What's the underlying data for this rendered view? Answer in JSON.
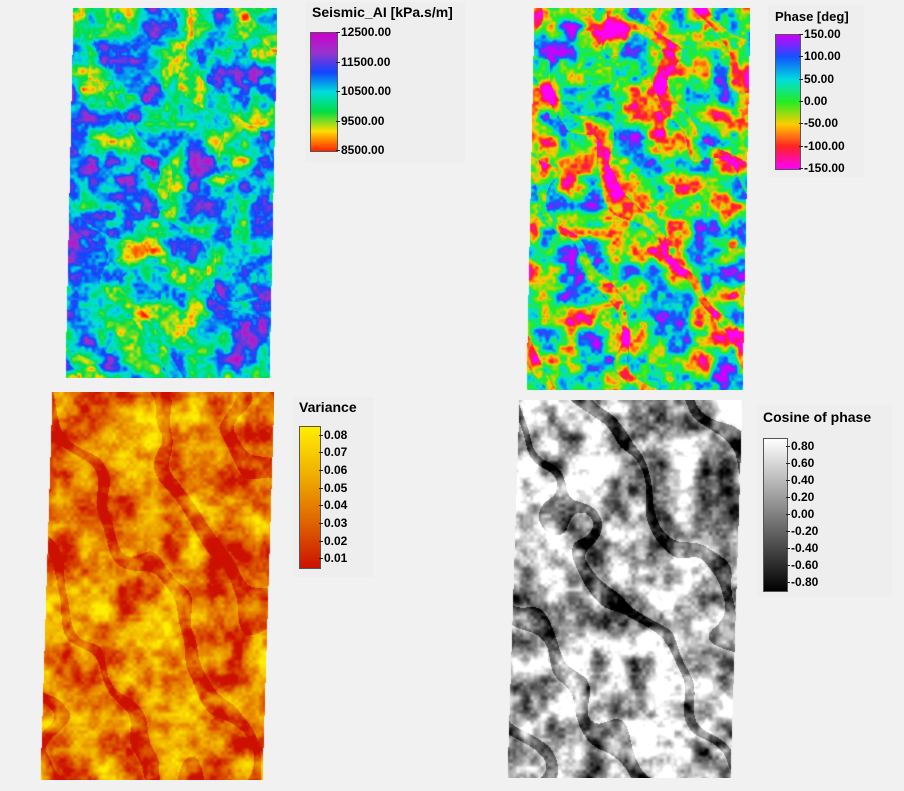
{
  "panels": [
    {
      "id": "seismic-ai",
      "legend_title": "Seismic_AI [kPa.s/m]",
      "colorscale": [
        "#ff2200",
        "#ffdd00",
        "#00dd44",
        "#00dddd",
        "#1144ff",
        "#9933cc",
        "#cc00cc"
      ],
      "tick_labels": [
        "12500.00",
        "11500.00",
        "10500.00",
        "9500.00",
        "8500.00"
      ],
      "tick_values": [
        12500,
        11500,
        10500,
        9500,
        8500
      ],
      "range": [
        8500,
        12500
      ]
    },
    {
      "id": "phase",
      "legend_title": "Phase [deg]",
      "colorscale": [
        "#ff00ff",
        "#ff2222",
        "#ffcc00",
        "#22ee22",
        "#00dddd",
        "#1155ff",
        "#cc00ff"
      ],
      "tick_labels": [
        "150.00",
        "100.00",
        "50.00",
        "0.00",
        "-50.00",
        "-100.00",
        "-150.00"
      ],
      "tick_values": [
        150,
        100,
        50,
        0,
        -50,
        -100,
        -150
      ],
      "range": [
        -150,
        150
      ]
    },
    {
      "id": "variance",
      "legend_title": "Variance",
      "colorscale": [
        "#cc1100",
        "#e06600",
        "#f0b000",
        "#ffee00"
      ],
      "tick_labels": [
        "0.08",
        "0.07",
        "0.06",
        "0.05",
        "0.04",
        "0.03",
        "0.02",
        "0.01"
      ],
      "tick_values": [
        0.08,
        0.07,
        0.06,
        0.05,
        0.04,
        0.03,
        0.02,
        0.01
      ],
      "range": [
        0.005,
        0.085
      ]
    },
    {
      "id": "cosine-phase",
      "legend_title": "Cosine of phase",
      "colorscale": [
        "#000000",
        "#ffffff"
      ],
      "tick_labels": [
        "0.80",
        "0.60",
        "0.40",
        "0.20",
        "0.00",
        "-0.20",
        "-0.40",
        "-0.60",
        "-0.80"
      ],
      "tick_values": [
        0.8,
        0.6,
        0.4,
        0.2,
        0,
        -0.2,
        -0.4,
        -0.6,
        -0.8
      ],
      "range": [
        -0.9,
        0.9
      ]
    }
  ]
}
